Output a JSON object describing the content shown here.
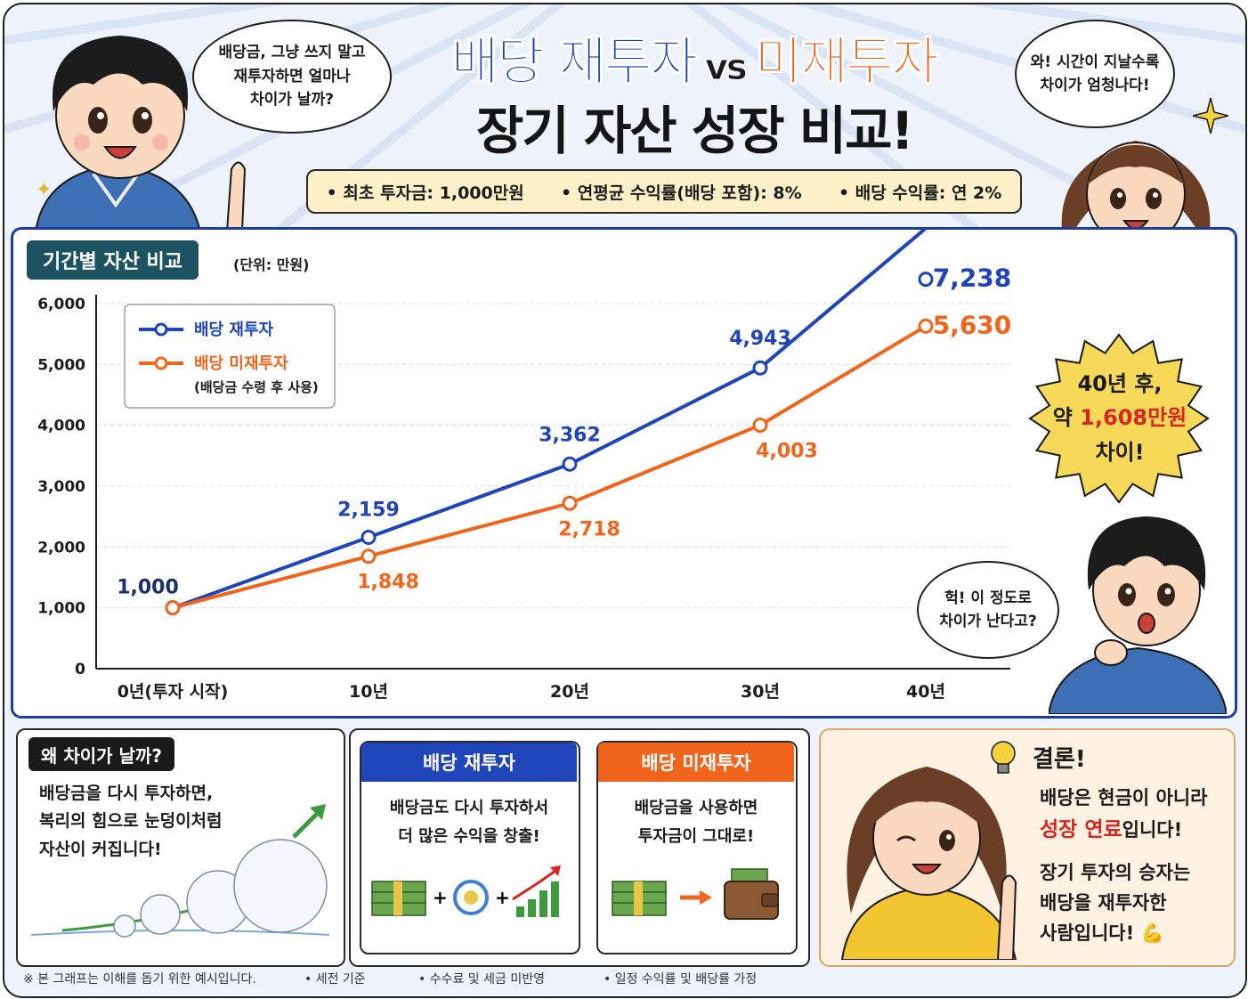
{
  "header": {
    "title_a": "배당 재투자",
    "title_vs": "vs",
    "title_b": "미재투자",
    "title_line2": "장기 자산 성장 비교!",
    "info": [
      "• 최초 투자금: 1,000만원",
      "• 연평균 수익률(배당 포함): 8%",
      "• 배당 수익률: 연 2%"
    ]
  },
  "bubbles": {
    "boy_top": [
      "배당금, 그냥 쓰지 말고",
      "재투자하면 얼마나",
      "차이가 날까?"
    ],
    "girl_top": [
      "와! 시간이 지날수록",
      "차이가 엄청나다!"
    ],
    "boy_bottom": [
      "헉! 이 정도로",
      "차이가 난다고?"
    ]
  },
  "chart_panel": {
    "tag": "기간별 자산 비교",
    "unit": "(단위: 만원)"
  },
  "chart_data": {
    "type": "line",
    "categories": [
      "0년(투자 시작)",
      "10년",
      "20년",
      "30년",
      "40년"
    ],
    "ylim": [
      0,
      6000
    ],
    "yticks": [
      "0",
      "1,000",
      "2,000",
      "3,000",
      "4,000",
      "5,000",
      "6,000"
    ],
    "grid": true,
    "legend_position": "top-left",
    "series": [
      {
        "name": "배당 재투자",
        "color": "#1f45b8",
        "values": [
          1000,
          2159,
          3362,
          4943,
          7238
        ],
        "labels": [
          "1,000",
          "2,159",
          "3,362",
          "4,943",
          "7,238"
        ]
      },
      {
        "name": "배당 미재투자",
        "subname": "(배당금 수령 후 사용)",
        "color": "#f0641b",
        "values": [
          1000,
          1848,
          2718,
          4003,
          5630
        ],
        "labels": [
          "1,000",
          "1,848",
          "2,718",
          "4,003",
          "5,630"
        ]
      }
    ]
  },
  "callout": {
    "line1": "40년 후,",
    "line2_pre": "약 ",
    "line2_red": "1,608만원",
    "line3": "차이!"
  },
  "why": {
    "title": "왜 차이가 날까?",
    "lines": [
      "배당금을 다시 투자하면,",
      "복리의 힘으로 눈덩이처럼",
      "자산이 커집니다!"
    ]
  },
  "reinvest_card": {
    "title": "배당 재투자",
    "lines": [
      "배당금도 다시 투자하서",
      "더 많은 수익을 창출!"
    ]
  },
  "noreinvest_card": {
    "title": "배당 미재투자",
    "lines": [
      "배당금을 사용하면",
      "투자금이 그대로!"
    ]
  },
  "conclusion": {
    "title": "결론!",
    "line1": "배당은 현금이 아니라",
    "line2_red": "성장 연료",
    "line2_post": "입니다!",
    "line3": "장기 투자의 승자는",
    "line4": "배당을 재투자한",
    "line5": "사람입니다!"
  },
  "footer": [
    "※ 본 그래프는 이해를 돕기 위한 예시입니다.",
    "• 세전 기준",
    "• 수수료 및 세금 미반영",
    "• 일정 수익률 및 배당률 가정"
  ],
  "colors": {
    "blue": "#1f45b8",
    "orange": "#f0641b",
    "red": "#d8251f",
    "teal": "#1d5260"
  }
}
